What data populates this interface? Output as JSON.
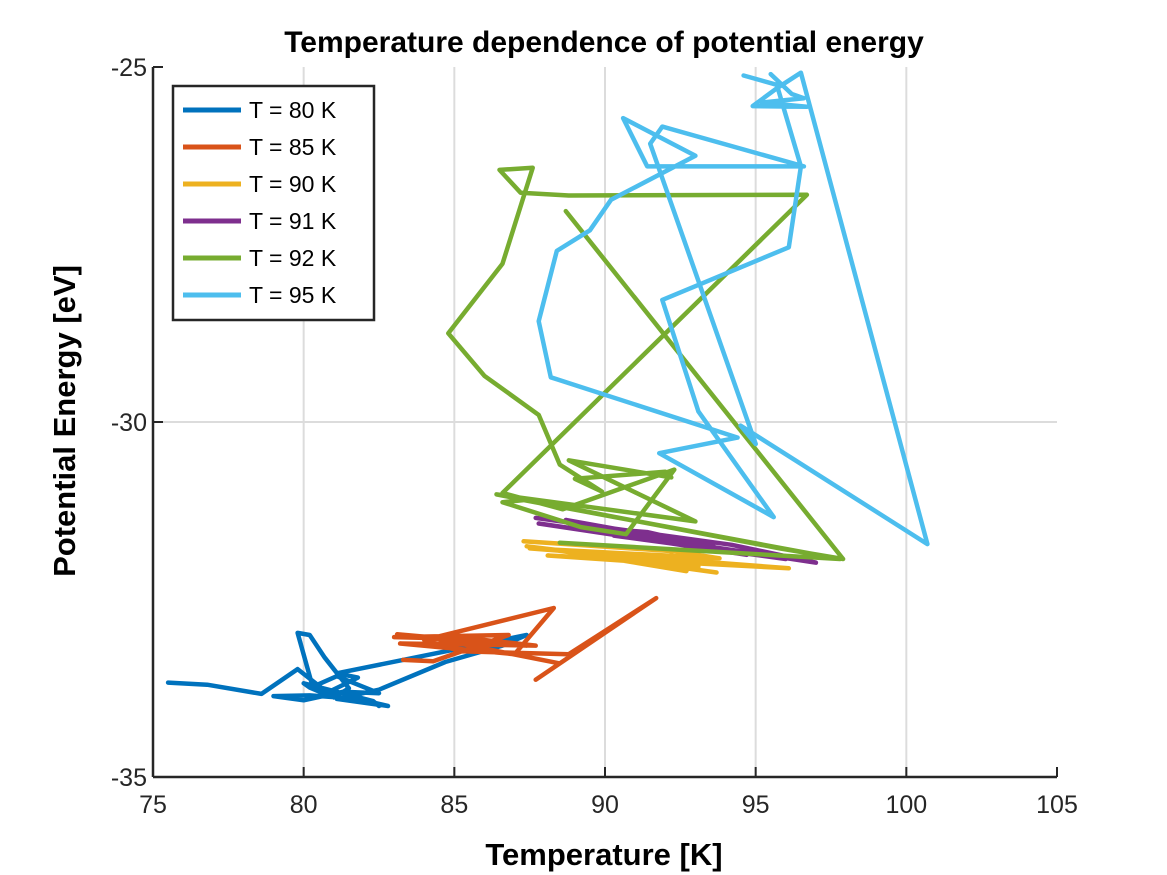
{
  "chart_data": {
    "type": "line",
    "title": "Temperature dependence of potential energy",
    "xlabel": "Temperature [K]",
    "ylabel": "Potential Energy [eV]",
    "xlim": [
      75,
      105
    ],
    "ylim": [
      -35,
      -25
    ],
    "xticks": [
      75,
      80,
      85,
      90,
      95,
      100,
      105
    ],
    "yticks": [
      -35,
      -30,
      -25
    ],
    "grid": true,
    "legend_position": "top-left",
    "series": [
      {
        "name": "T = 80 K",
        "color": "#0072BD",
        "x": [
          75.5,
          76.8,
          78.6,
          79.8,
          81.0,
          81.5,
          80.7,
          80.2,
          79.8,
          80.3,
          81.1,
          82.5,
          81.3,
          80.0,
          79.0,
          80.2,
          81.8,
          82.8,
          81.1,
          82.5,
          84.7,
          86.6,
          87.4,
          81.1,
          81.8,
          80.7,
          80.2,
          80.0,
          82.3,
          82.5
        ],
        "y": [
          -33.67,
          -33.7,
          -33.83,
          -33.48,
          -33.88,
          -33.75,
          -33.32,
          -33.0,
          -32.97,
          -33.73,
          -33.58,
          -33.82,
          -33.8,
          -33.92,
          -33.86,
          -33.85,
          -33.9,
          -34.0,
          -33.9,
          -33.77,
          -33.38,
          -33.15,
          -33.0,
          -33.54,
          -33.6,
          -33.83,
          -33.74,
          -33.68,
          -33.93,
          -34.0
        ]
      },
      {
        "name": "T = 85 K",
        "color": "#D95319",
        "x": [
          83.3,
          84.3,
          86.8,
          83.0,
          85.8,
          87.7,
          83.2,
          87.0,
          88.3,
          84.0,
          85.2,
          88.8,
          91.7,
          87.7,
          88.5,
          84.2,
          83.1,
          87.4
        ],
        "y": [
          -33.35,
          -33.37,
          -33.0,
          -33.03,
          -33.06,
          -33.15,
          -33.12,
          -33.27,
          -32.62,
          -33.07,
          -33.23,
          -33.27,
          -32.48,
          -33.63,
          -33.4,
          -33.04,
          -32.99,
          -33.15
        ]
      },
      {
        "name": "T = 90 K",
        "color": "#EDB120",
        "x": [
          87.3,
          92.3,
          93.8,
          87.5,
          96.1,
          88.1,
          91.2,
          93.7,
          87.4,
          93.1,
          89.0,
          92.7,
          92.2
        ],
        "y": [
          -31.68,
          -31.82,
          -31.92,
          -31.78,
          -32.06,
          -31.88,
          -31.97,
          -32.12,
          -31.75,
          -32.04,
          -31.84,
          -32.1,
          -31.87
        ]
      },
      {
        "name": "T = 91 K",
        "color": "#7E2F8E",
        "x": [
          87.7,
          94.2,
          97.0,
          89.0,
          91.4,
          94.7,
          87.8,
          96.0,
          90.3,
          93.6,
          88.7,
          92.5,
          92.8
        ],
        "y": [
          -31.35,
          -31.73,
          -31.98,
          -31.47,
          -31.55,
          -31.87,
          -31.43,
          -31.93,
          -31.6,
          -31.75,
          -31.38,
          -31.69,
          -31.8
        ]
      },
      {
        "name": "T = 92 K",
        "color": "#77AC30",
        "x": [
          88.7,
          97.9,
          95.8,
          86.4,
          93.0,
          88.8,
          92.2,
          92.0,
          89.0,
          89.9,
          88.5,
          87.8,
          86.0,
          84.8,
          86.6,
          87.6,
          86.5,
          87.2,
          88.8,
          96.7,
          86.6,
          88.6,
          92.3,
          90.7,
          89.2,
          86.6,
          87.3,
          97.8,
          88.5
        ],
        "y": [
          -27.03,
          -31.93,
          -31.78,
          -31.02,
          -31.4,
          -30.54,
          -30.78,
          -30.7,
          -30.8,
          -30.98,
          -30.6,
          -29.9,
          -29.35,
          -28.75,
          -27.77,
          -26.42,
          -26.45,
          -26.77,
          -26.81,
          -26.8,
          -31.0,
          -31.23,
          -30.67,
          -31.58,
          -31.48,
          -31.13,
          -31.1,
          -31.93,
          -31.7
        ]
      },
      {
        "name": "T = 95 K",
        "color": "#4DBEEE",
        "x": [
          95.5,
          96.2,
          96.6,
          95.2,
          96.7,
          94.9,
          95.7,
          96.5,
          100.7,
          94.5,
          95.0,
          91.5,
          91.9,
          96.6,
          91.4,
          90.6,
          93.0,
          90.2,
          89.5,
          88.4,
          87.8,
          88.2,
          94.4,
          91.8,
          95.6,
          93.1,
          91.9,
          96.1,
          96.5,
          95.7,
          94.6
        ],
        "y": [
          -25.1,
          -25.38,
          -25.44,
          -25.5,
          -25.56,
          -25.55,
          -25.3,
          -25.08,
          -31.72,
          -30.05,
          -30.31,
          -26.08,
          -25.84,
          -26.4,
          -26.4,
          -25.72,
          -26.25,
          -26.87,
          -27.3,
          -27.59,
          -28.58,
          -29.37,
          -30.22,
          -30.44,
          -31.34,
          -29.85,
          -28.28,
          -27.54,
          -26.4,
          -25.25,
          -25.12
        ]
      }
    ]
  }
}
